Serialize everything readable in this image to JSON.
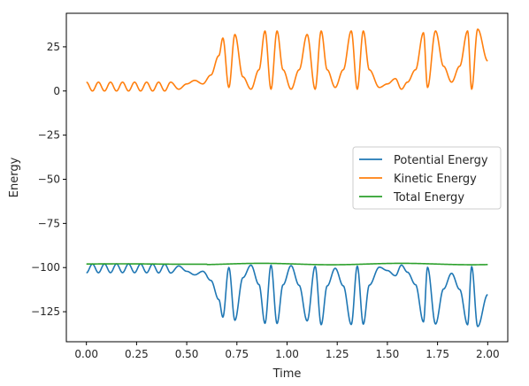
{
  "chart_data": {
    "type": "line",
    "xlabel": "Time",
    "ylabel": "Energy",
    "xlim": [
      -0.1,
      2.1
    ],
    "ylim": [
      -142,
      44
    ],
    "xticks": [
      0.0,
      0.25,
      0.5,
      0.75,
      1.0,
      1.25,
      1.5,
      1.75,
      2.0
    ],
    "xtick_labels": [
      "0.00",
      "0.25",
      "0.50",
      "0.75",
      "1.00",
      "1.25",
      "1.50",
      "1.75",
      "2.00"
    ],
    "yticks": [
      25,
      0,
      -25,
      -50,
      -75,
      -100,
      -125
    ],
    "ytick_labels": [
      "25",
      "0",
      "−25",
      "−50",
      "−75",
      "−100",
      "−125"
    ],
    "grid": false,
    "legend_position": "center-right",
    "series": [
      {
        "name": "Potential Energy",
        "color": "#1f77b4",
        "total_ref": -98.0,
        "kinetic_points": [
          [
            0.0,
            5
          ],
          [
            0.03,
            0
          ],
          [
            0.06,
            5
          ],
          [
            0.09,
            0
          ],
          [
            0.12,
            5
          ],
          [
            0.15,
            0
          ],
          [
            0.18,
            5
          ],
          [
            0.21,
            0
          ],
          [
            0.24,
            5
          ],
          [
            0.27,
            0
          ],
          [
            0.3,
            5
          ],
          [
            0.33,
            0
          ],
          [
            0.36,
            5
          ],
          [
            0.39,
            0
          ],
          [
            0.42,
            5
          ],
          [
            0.46,
            1
          ],
          [
            0.5,
            4
          ],
          [
            0.54,
            6
          ],
          [
            0.58,
            4
          ],
          [
            0.62,
            9
          ],
          [
            0.66,
            20
          ],
          [
            0.68,
            30
          ],
          [
            0.71,
            2
          ],
          [
            0.74,
            32
          ],
          [
            0.78,
            8
          ],
          [
            0.82,
            1
          ],
          [
            0.86,
            12
          ],
          [
            0.89,
            34
          ],
          [
            0.92,
            1
          ],
          [
            0.95,
            34
          ],
          [
            0.98,
            12
          ],
          [
            1.02,
            1
          ],
          [
            1.06,
            12
          ],
          [
            1.1,
            32
          ],
          [
            1.14,
            1
          ],
          [
            1.17,
            34
          ],
          [
            1.2,
            12
          ],
          [
            1.24,
            2
          ],
          [
            1.28,
            12
          ],
          [
            1.32,
            34
          ],
          [
            1.35,
            1
          ],
          [
            1.38,
            34
          ],
          [
            1.41,
            12
          ],
          [
            1.46,
            2
          ],
          [
            1.5,
            4
          ],
          [
            1.54,
            7
          ],
          [
            1.57,
            1
          ],
          [
            1.6,
            5
          ],
          [
            1.64,
            12
          ],
          [
            1.68,
            33
          ],
          [
            1.7,
            2
          ],
          [
            1.74,
            34
          ],
          [
            1.78,
            14
          ],
          [
            1.82,
            5
          ],
          [
            1.86,
            14
          ],
          [
            1.9,
            34
          ],
          [
            1.92,
            1
          ],
          [
            1.95,
            35
          ],
          [
            2.0,
            17
          ]
        ]
      },
      {
        "name": "Kinetic Energy",
        "color": "#ff7f0e"
      },
      {
        "name": "Total Energy",
        "color": "#2ca02c",
        "value_hint": -98.0
      }
    ]
  }
}
